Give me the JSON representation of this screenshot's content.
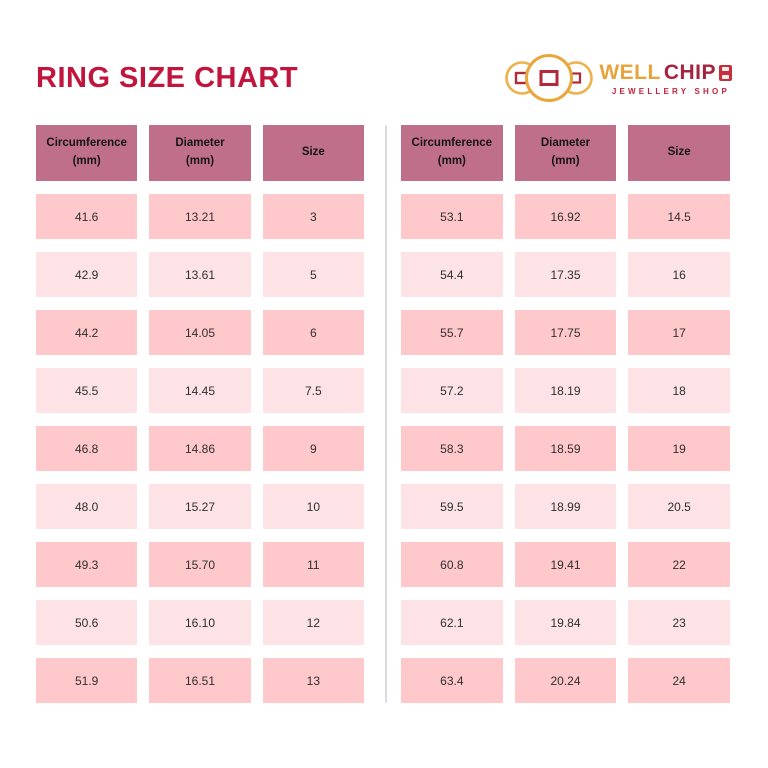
{
  "page": {
    "title": "RING SIZE CHART"
  },
  "logo": {
    "brand_part1": "WELL",
    "brand_part2": "CHIP",
    "tagline": "JEWELLERY SHOP",
    "icon": "three-coins-icon"
  },
  "colors": {
    "title": "#C1153D",
    "header_bg": "#C06F8B",
    "row_strong": "#FFC9CB",
    "row_light": "#FDE3E5",
    "divider": "#DBDBE4",
    "logo_gold": "#E8A43C",
    "logo_red": "#A32340",
    "tagline_red": "#C2223C"
  },
  "chart_data": {
    "type": "table",
    "title": "RING SIZE CHART",
    "columns": [
      "Circumference (mm)",
      "Diameter (mm)",
      "Size"
    ],
    "left_rows": [
      [
        41.6,
        13.21,
        3
      ],
      [
        42.9,
        13.61,
        5
      ],
      [
        44.2,
        14.05,
        6
      ],
      [
        45.5,
        14.45,
        7.5
      ],
      [
        46.8,
        14.86,
        9
      ],
      [
        48.0,
        15.27,
        10
      ],
      [
        49.3,
        15.7,
        11
      ],
      [
        50.6,
        16.1,
        12
      ],
      [
        51.9,
        16.51,
        13
      ]
    ],
    "right_rows": [
      [
        53.1,
        16.92,
        14.5
      ],
      [
        54.4,
        17.35,
        16
      ],
      [
        55.7,
        17.75,
        17
      ],
      [
        57.2,
        18.19,
        18
      ],
      [
        58.3,
        18.59,
        19
      ],
      [
        59.5,
        18.99,
        20.5
      ],
      [
        60.8,
        19.41,
        22
      ],
      [
        62.1,
        19.84,
        23
      ],
      [
        63.4,
        20.24,
        24
      ]
    ]
  },
  "tables": [
    {
      "headers": [
        [
          "Circumference",
          "(mm)"
        ],
        [
          "Diameter",
          "(mm)"
        ],
        [
          "Size"
        ]
      ],
      "rows": [
        [
          "41.6",
          "13.21",
          "3"
        ],
        [
          "42.9",
          "13.61",
          "5"
        ],
        [
          "44.2",
          "14.05",
          "6"
        ],
        [
          "45.5",
          "14.45",
          "7.5"
        ],
        [
          "46.8",
          "14.86",
          "9"
        ],
        [
          "48.0",
          "15.27",
          "10"
        ],
        [
          "49.3",
          "15.70",
          "11"
        ],
        [
          "50.6",
          "16.10",
          "12"
        ],
        [
          "51.9",
          "16.51",
          "13"
        ]
      ]
    },
    {
      "headers": [
        [
          "Circumference",
          "(mm)"
        ],
        [
          "Diameter",
          "(mm)"
        ],
        [
          "Size"
        ]
      ],
      "rows": [
        [
          "53.1",
          "16.92",
          "14.5"
        ],
        [
          "54.4",
          "17.35",
          "16"
        ],
        [
          "55.7",
          "17.75",
          "17"
        ],
        [
          "57.2",
          "18.19",
          "18"
        ],
        [
          "58.3",
          "18.59",
          "19"
        ],
        [
          "59.5",
          "18.99",
          "20.5"
        ],
        [
          "60.8",
          "19.41",
          "22"
        ],
        [
          "62.1",
          "19.84",
          "23"
        ],
        [
          "63.4",
          "20.24",
          "24"
        ]
      ]
    }
  ]
}
